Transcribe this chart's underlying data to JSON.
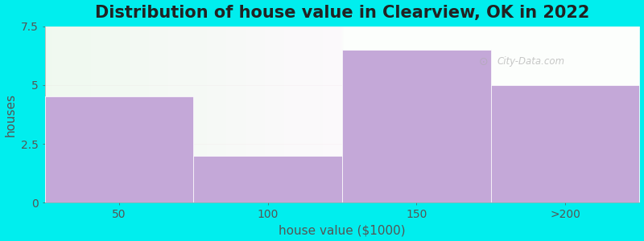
{
  "title": "Distribution of house value in Clearview, OK in 2022",
  "xlabel": "house value ($1000)",
  "ylabel": "houses",
  "categories": [
    "50",
    "100",
    "150",
    ">200"
  ],
  "values": [
    4.5,
    2.0,
    6.5,
    5.0
  ],
  "bar_color": "#C4A8D8",
  "bar_edgecolor": "#ffffff",
  "background_color": "#00EEEE",
  "plot_bg_left": "#E8F5E9",
  "plot_bg_right": "#F5F5F5",
  "ylim": [
    0,
    7.5
  ],
  "yticks": [
    0,
    2.5,
    5,
    7.5
  ],
  "title_fontsize": 15,
  "axis_label_fontsize": 11,
  "tick_fontsize": 10,
  "watermark_text": "City-Data.com",
  "grid_color": "#E8D0D0",
  "grid_alpha": 0.9
}
